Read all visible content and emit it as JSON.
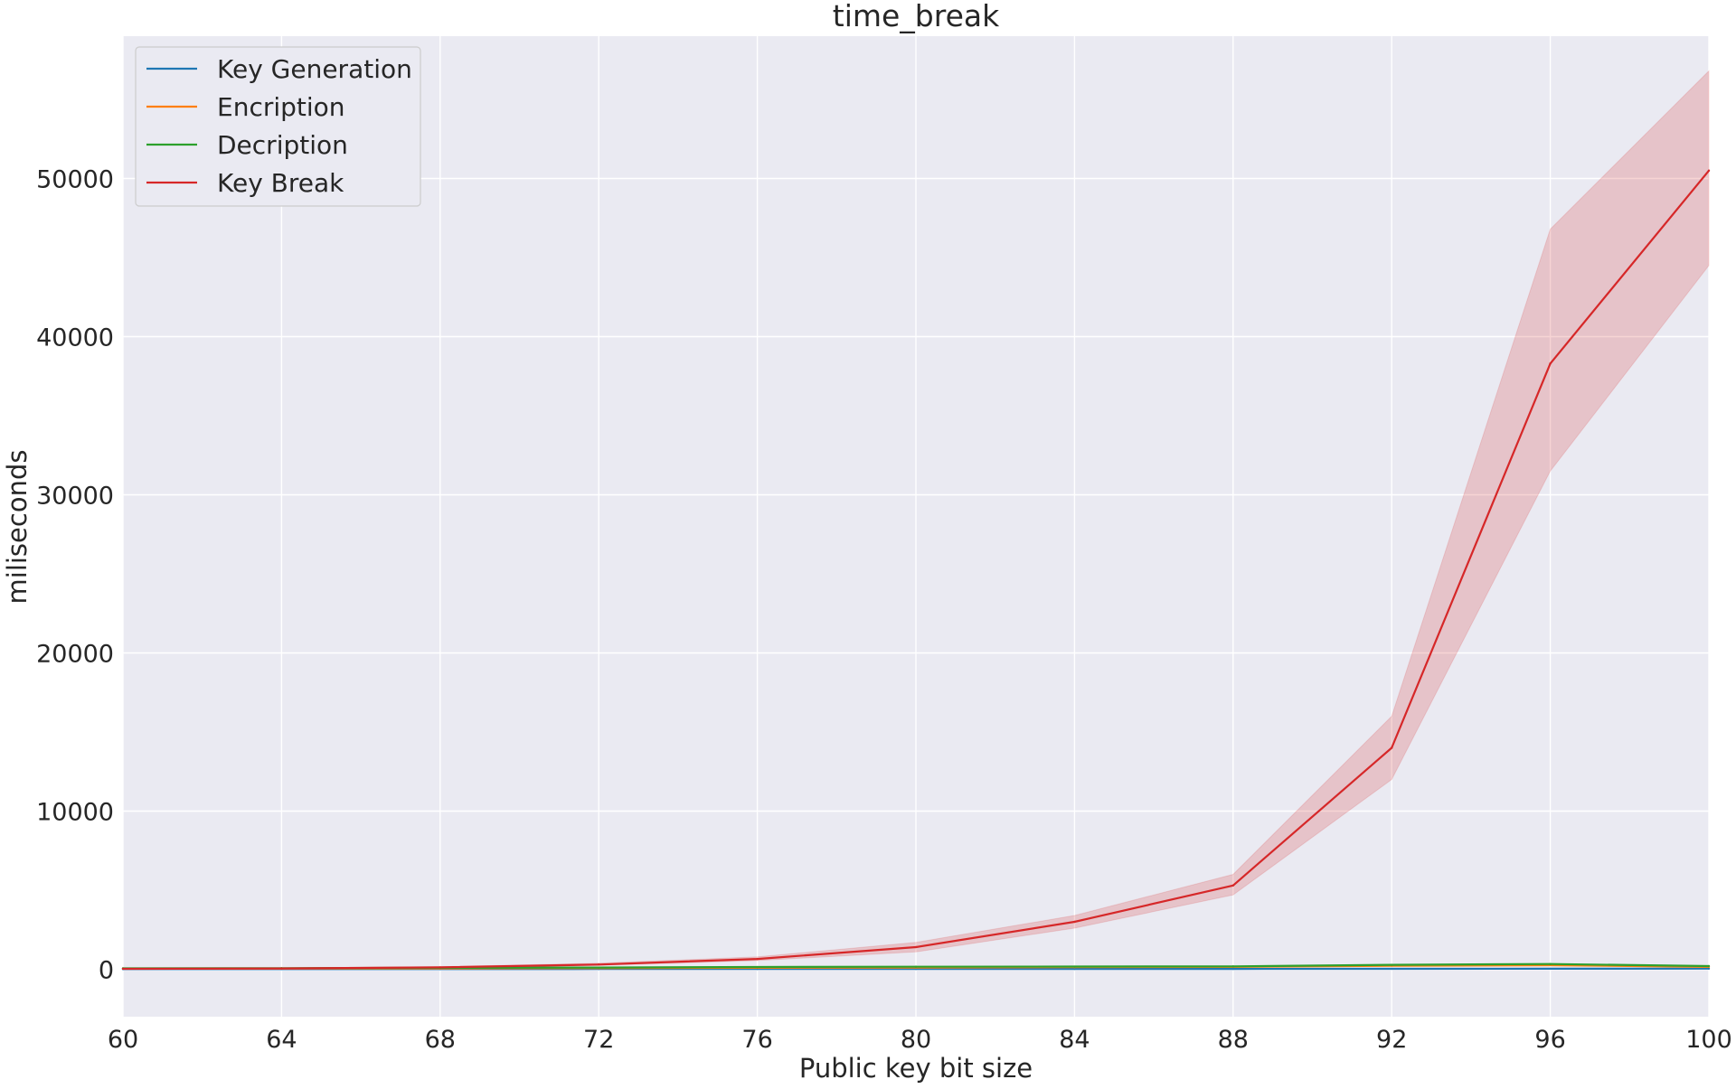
{
  "chart_data": {
    "type": "line",
    "title": "time_break",
    "xlabel": "Public key bit size",
    "ylabel": "miliseconds",
    "xlim": [
      60,
      100
    ],
    "ylim": [
      -3000,
      59000
    ],
    "x_ticks": [
      60,
      64,
      68,
      72,
      76,
      80,
      84,
      88,
      92,
      96,
      100
    ],
    "y_ticks": [
      0,
      10000,
      20000,
      30000,
      40000,
      50000
    ],
    "grid": true,
    "legend_position": "top-left",
    "x": [
      60,
      64,
      68,
      72,
      76,
      80,
      84,
      88,
      92,
      96,
      100
    ],
    "series": [
      {
        "name": "Key Generation",
        "color": "#1f77b4",
        "values": [
          10,
          12,
          14,
          16,
          18,
          20,
          22,
          24,
          30,
          35,
          38
        ]
      },
      {
        "name": "Encription",
        "color": "#ff7f0e",
        "values": [
          40,
          45,
          55,
          70,
          90,
          110,
          130,
          150,
          220,
          260,
          150
        ]
      },
      {
        "name": "Decription",
        "color": "#2ca02c",
        "values": [
          60,
          70,
          90,
          110,
          140,
          160,
          170,
          180,
          280,
          330,
          200
        ]
      },
      {
        "name": "Key Break",
        "color": "#d62728",
        "values": [
          30,
          50,
          120,
          300,
          650,
          1400,
          3000,
          5300,
          14000,
          38300,
          50500
        ],
        "ci_lower": [
          20,
          35,
          90,
          240,
          550,
          1100,
          2600,
          4700,
          12000,
          31500,
          44500
        ],
        "ci_upper": [
          45,
          70,
          160,
          380,
          780,
          1700,
          3400,
          6000,
          16000,
          46800,
          56800
        ]
      }
    ]
  }
}
